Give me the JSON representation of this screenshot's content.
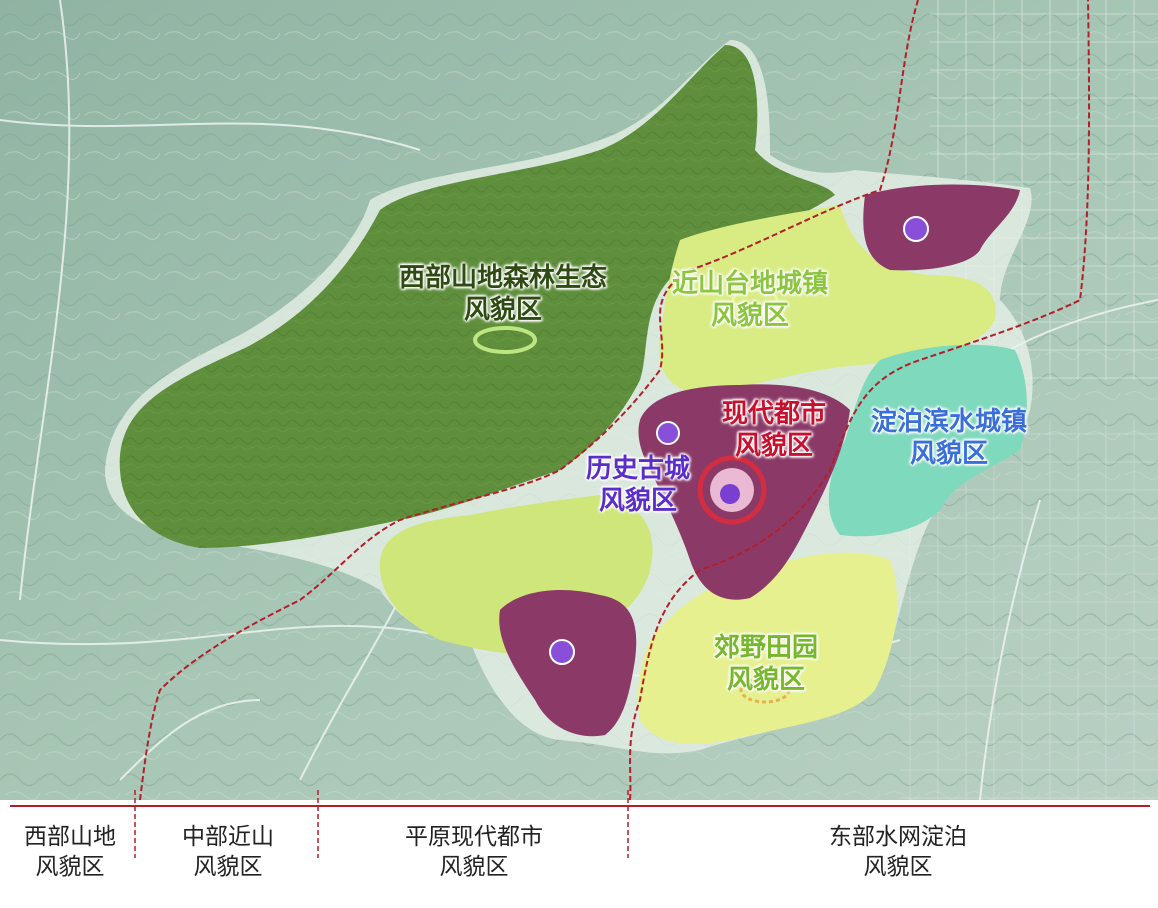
{
  "colors": {
    "terrain": "#9dbfae",
    "forest_zone": "#5f8f3c",
    "metro_zone": "#8b3a68",
    "tableland_zone": "#d9ec84",
    "water_zone": "#7fd9bc",
    "field_zone": "#e6f08e",
    "divider_line": "#b21f2a",
    "label_forest": "#2f4a12",
    "label_tableland": "#8cc63f",
    "label_metro": "#c8102e",
    "label_history": "#5b2dc9",
    "label_water": "#3a6fd9",
    "label_field": "#76b82a"
  },
  "zones": {
    "west_forest": {
      "line1": "西部山地森林生态",
      "line2": "风貌区"
    },
    "tableland_towns": {
      "line1": "近山台地城镇",
      "line2": "风貌区"
    },
    "modern_metro": {
      "line1": "现代都市",
      "line2": "风貌区"
    },
    "historic_city": {
      "line1": "历史古城",
      "line2": "风貌区"
    },
    "waterside_towns": {
      "line1": "淀泊滨水城镇",
      "line2": "风貌区"
    },
    "countryside_fields": {
      "line1": "郊野田园",
      "line2": "风貌区"
    }
  },
  "bands": [
    {
      "line1": "西部山地",
      "line2": "风貌区"
    },
    {
      "line1": "中部近山",
      "line2": "风貌区"
    },
    {
      "line1": "平原现代都市",
      "line2": "风貌区"
    },
    {
      "line1": "东部水网淀泊",
      "line2": "风貌区"
    }
  ]
}
